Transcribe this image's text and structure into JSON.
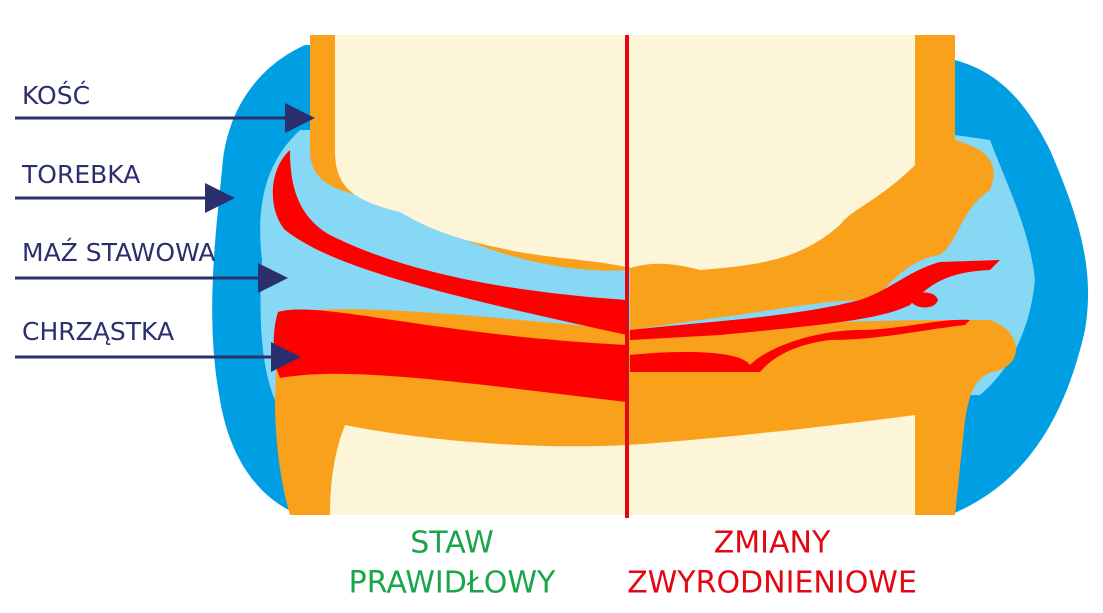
{
  "labels": [
    "KOŚĆ",
    "TOREBKA",
    "MAŹ STAWOWA",
    "CHRZĄSTKA"
  ],
  "captions": {
    "left": [
      "STAW",
      "PRAWIDŁOWY"
    ],
    "right": [
      "ZMIANY",
      "ZWYRODNIENIOWE"
    ]
  }
}
